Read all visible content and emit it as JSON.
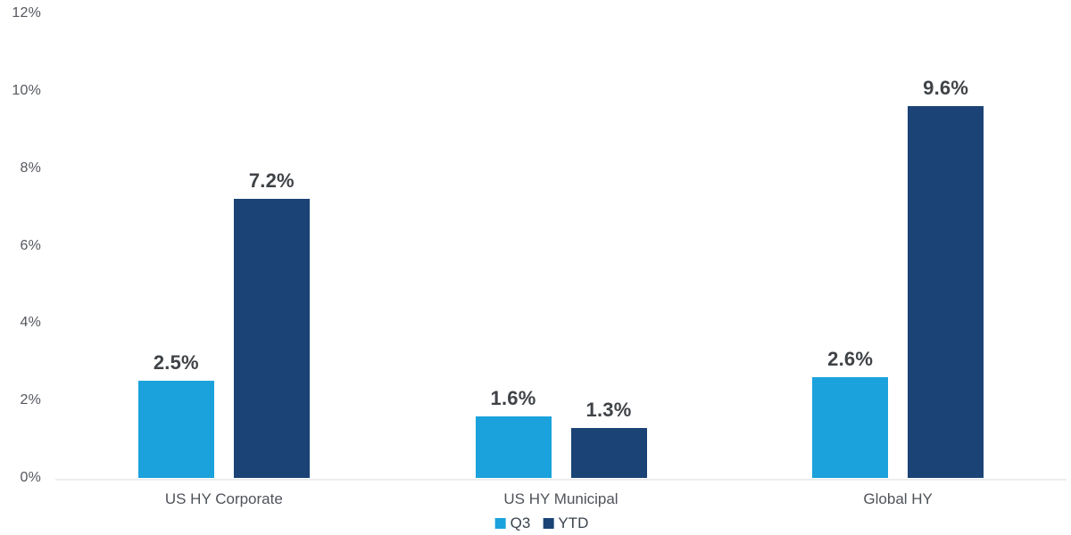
{
  "chart_data": {
    "type": "bar",
    "title": "",
    "xlabel": "",
    "ylabel": "",
    "categories": [
      "US HY Corporate",
      "US HY Municipal",
      "Global HY"
    ],
    "series": [
      {
        "name": "Q3",
        "color": "#1BA2DC",
        "values": [
          2.5,
          1.6,
          2.6
        ]
      },
      {
        "name": "YTD",
        "color": "#1B4375",
        "values": [
          7.2,
          1.3,
          9.6
        ]
      }
    ],
    "value_labels": [
      [
        "2.5%",
        "1.6%",
        "2.6%"
      ],
      [
        "7.2%",
        "1.3%",
        "9.6%"
      ]
    ],
    "y_ticks": [
      "0%",
      "2%",
      "4%",
      "6%",
      "8%",
      "10%",
      "12%"
    ],
    "y_tick_values": [
      0,
      2,
      4,
      6,
      8,
      10,
      12
    ],
    "ylim": [
      0,
      12
    ],
    "grid": false,
    "legend_position": "bottom"
  },
  "colors": {
    "axis_line": "#ECEDEE",
    "tick_text": "#54575E",
    "category_text": "#4F5359",
    "value_label_text": "#3F4347",
    "legend_text": "#3A434D",
    "background": "#ffffff"
  }
}
